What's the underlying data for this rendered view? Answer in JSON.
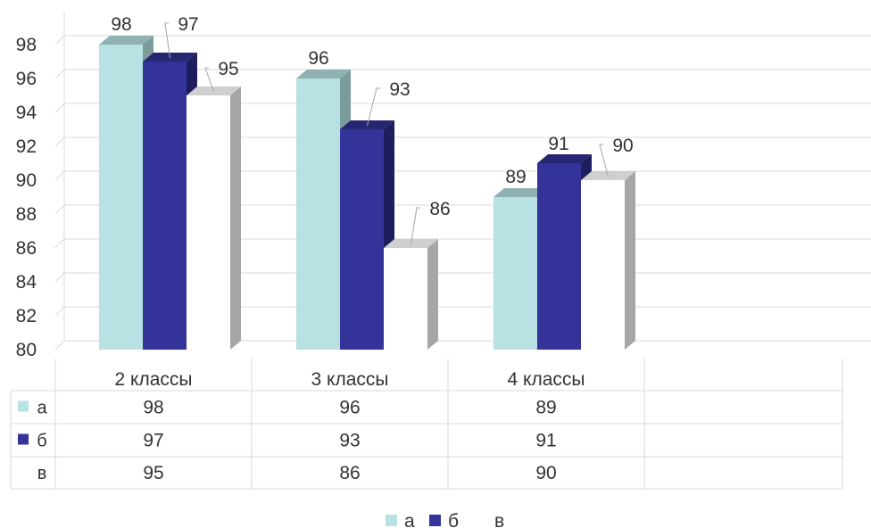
{
  "chart_data": {
    "type": "bar",
    "title": "",
    "xlabel": "",
    "ylabel": "",
    "ylim": [
      80,
      99
    ],
    "yticks": [
      80,
      82,
      84,
      86,
      88,
      90,
      92,
      94,
      96,
      98
    ],
    "grid": true,
    "legend_position": "bottom",
    "data_table": true,
    "categories": [
      "2 классы",
      "3 классы",
      "4 классы"
    ],
    "series": [
      {
        "name": "а",
        "values": [
          98,
          96,
          89
        ],
        "color": "#b7e1e2",
        "side_color": "#7c9c9c",
        "top_color": "#8fb1b1"
      },
      {
        "name": "б",
        "values": [
          97,
          93,
          91
        ],
        "color": "#333399",
        "side_color": "#1e1e5e",
        "top_color": "#262673"
      },
      {
        "name": "в",
        "values": [
          95,
          86,
          90
        ],
        "color": "#ffffff",
        "side_color": "#a6a6a6",
        "top_color": "#cfcfcf"
      }
    ]
  }
}
